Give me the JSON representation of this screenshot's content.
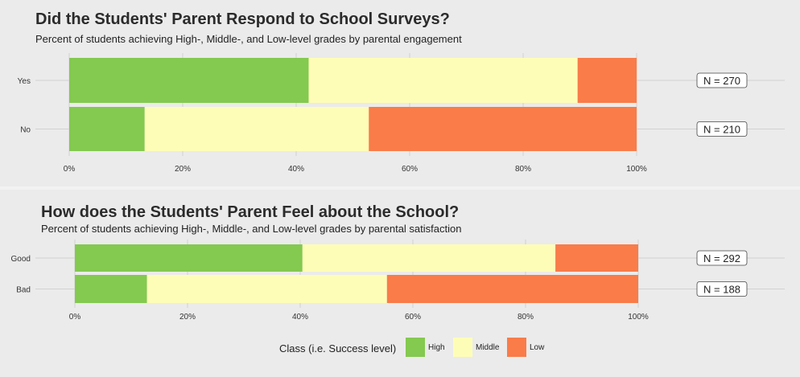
{
  "chart_data": [
    {
      "type": "bar",
      "orientation": "horizontal",
      "stacked": "percent",
      "title": "Did the Students' Parent Respond to School Surveys?",
      "subtitle": "Percent of students achieving High-, Middle-, and Low-level grades by parental engagement",
      "categories": [
        "Yes",
        "No"
      ],
      "series": [
        {
          "name": "High",
          "values": [
            42.2,
            13.3
          ]
        },
        {
          "name": "Middle",
          "values": [
            47.4,
            39.5
          ]
        },
        {
          "name": "Low",
          "values": [
            10.4,
            47.2
          ]
        }
      ],
      "annotations": [
        "N = 270",
        "N = 210"
      ],
      "x_ticks": [
        "0%",
        "20%",
        "40%",
        "60%",
        "80%",
        "100%"
      ],
      "xlim": [
        0,
        100
      ],
      "grid": true
    },
    {
      "type": "bar",
      "orientation": "horizontal",
      "stacked": "percent",
      "title": "How does the Students' Parent Feel about the School?",
      "subtitle": "Percent of students achieving High-, Middle-, and Low-level grades by parental satisfaction",
      "categories": [
        "Good",
        "Bad"
      ],
      "series": [
        {
          "name": "High",
          "values": [
            40.4,
            12.8
          ]
        },
        {
          "name": "Middle",
          "values": [
            44.9,
            42.6
          ]
        },
        {
          "name": "Low",
          "values": [
            14.7,
            44.6
          ]
        }
      ],
      "annotations": [
        "N = 292",
        "N = 188"
      ],
      "x_ticks": [
        "0%",
        "20%",
        "40%",
        "60%",
        "80%",
        "100%"
      ],
      "xlim": [
        0,
        100
      ],
      "grid": true
    }
  ],
  "legend": {
    "title": "Class (i.e. Success level)",
    "position": "bottom",
    "items": [
      {
        "label": "High",
        "color": "#84c950"
      },
      {
        "label": "Middle",
        "color": "#fefdb7"
      },
      {
        "label": "Low",
        "color": "#f97c49"
      }
    ]
  },
  "colors": {
    "background": "#ebebeb",
    "grid": "#d2d2d2"
  }
}
